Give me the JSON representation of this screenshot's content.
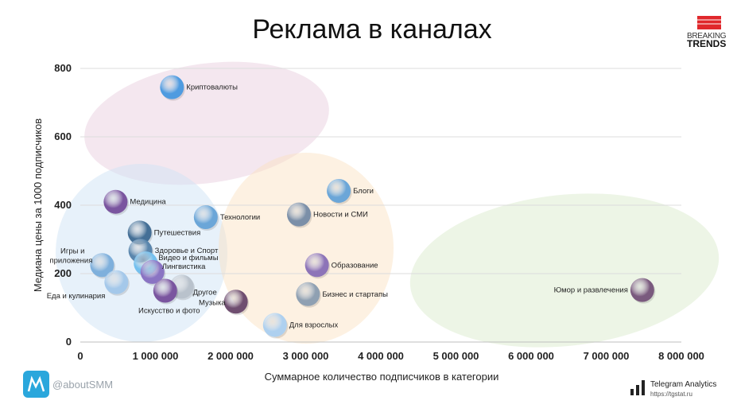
{
  "brand": {
    "breaking": "BREAKING",
    "trends": "TRENDS",
    "accent_color": "#e0282c",
    "footer_left": "@aboutSMM",
    "footer_right_title": "Telegram Analytics",
    "footer_right_url": "https://tgstat.ru"
  },
  "chart_data": {
    "type": "scatter",
    "title": "Реклама в каналах",
    "xlabel": "Суммарное количество подписчиков в категории",
    "ylabel": "Медиана цены за 1000 подписчиков",
    "xlim": [
      0,
      8000000
    ],
    "ylim": [
      0,
      800
    ],
    "x_ticks": [
      0,
      1000000,
      2000000,
      3000000,
      4000000,
      5000000,
      6000000,
      7000000,
      8000000
    ],
    "x_tick_labels": [
      "0",
      "1 000 000",
      "2 000 000",
      "3 000 000",
      "4 000 000",
      "5 000 000",
      "6 000 000",
      "7 000 000",
      "8 000 000"
    ],
    "y_ticks": [
      0,
      200,
      400,
      600,
      800
    ],
    "y_tick_labels": [
      "0",
      "200",
      "400",
      "600",
      "800"
    ],
    "grid": "horizontal",
    "points": [
      {
        "label": "Криптовалюты",
        "x": 1220000,
        "y": 745,
        "color": "#4f9be0"
      },
      {
        "label": "Медицина",
        "x": 470000,
        "y": 410,
        "color": "#7a559f"
      },
      {
        "label": "Технологии",
        "x": 1670000,
        "y": 365,
        "color": "#6ba6d8"
      },
      {
        "label": "Блоги",
        "x": 3440000,
        "y": 442,
        "color": "#6ba6d8"
      },
      {
        "label": "Новости и СМИ",
        "x": 2910000,
        "y": 373,
        "color": "#7b8fa8"
      },
      {
        "label": "Путешествия",
        "x": 790000,
        "y": 320,
        "color": "#446f96"
      },
      {
        "label": "Здоровье и Спорт",
        "x": 800000,
        "y": 267,
        "color": "#5a86ad"
      },
      {
        "label": "Видео и фильмы",
        "x": 870000,
        "y": 230,
        "color": "#74c0ee"
      },
      {
        "label": "Лингвистика",
        "x": 960000,
        "y": 205,
        "color": "#8a74c3"
      },
      {
        "label": "Игры и приложения",
        "x": 290000,
        "y": 225,
        "color": "#7fb0dc"
      },
      {
        "label": "Еда и кулинария",
        "x": 480000,
        "y": 175,
        "color": "#a4c8ea"
      },
      {
        "label": "Другое",
        "x": 1350000,
        "y": 162,
        "color": "#b9c2cc"
      },
      {
        "label": "Искусство и фото",
        "x": 1130000,
        "y": 150,
        "color": "#7a559f"
      },
      {
        "label": "Музыка",
        "x": 2070000,
        "y": 118,
        "color": "#6f4e70"
      },
      {
        "label": "Образование",
        "x": 3150000,
        "y": 225,
        "color": "#8d74b8"
      },
      {
        "label": "Бизнес и стартапы",
        "x": 3030000,
        "y": 140,
        "color": "#8fa0b2"
      },
      {
        "label": "Для взрослых",
        "x": 2590000,
        "y": 50,
        "color": "#aed0ef"
      },
      {
        "label": "Юмор и развлечения",
        "x": 7480000,
        "y": 152,
        "color": "#7a5a7e"
      }
    ]
  }
}
